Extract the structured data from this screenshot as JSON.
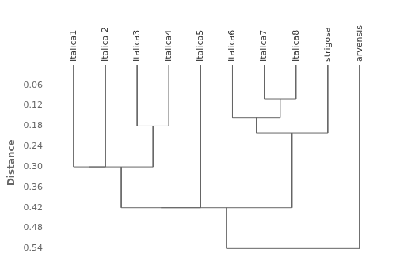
{
  "chart_data": {
    "type": "dendrogram",
    "categories": [
      "Italica1",
      "Italica 2",
      "Italica3",
      "Italica4",
      "Italica5",
      "Italica6",
      "Italica7",
      "Italica8",
      "strigosa",
      "arvensis"
    ],
    "merges": [
      [
        6,
        7,
        0.1
      ],
      [
        5,
        10,
        0.155
      ],
      [
        11,
        8,
        0.2
      ],
      [
        2,
        3,
        0.18
      ],
      [
        0,
        1,
        0.3
      ],
      [
        14,
        13,
        0.3
      ],
      [
        15,
        4,
        0.42
      ],
      [
        16,
        12,
        0.42
      ],
      [
        17,
        9,
        0.54
      ]
    ],
    "y_label": "Distance",
    "ylim": [
      0.575,
      0.0
    ],
    "yticks": [
      0.06,
      0.12,
      0.18,
      0.24,
      {
        "value": 0.3,
        "label": "0.30"
      },
      0.36,
      0.42,
      0.48,
      0.54
    ],
    "color": "#666666",
    "grid": false
  }
}
